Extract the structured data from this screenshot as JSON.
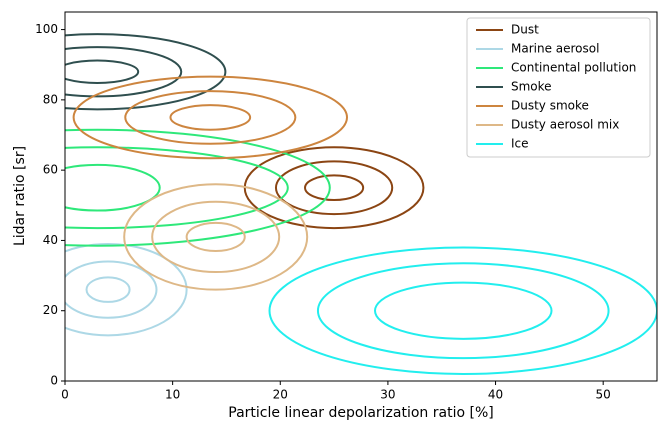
{
  "chart_data": {
    "type": "contour",
    "x_label": "Particle linear depolarization ratio [%]",
    "y_label": "Lidar ratio [sr]",
    "xlim": [
      0,
      55
    ],
    "ylim": [
      0,
      105
    ],
    "xticks": [
      0,
      10,
      20,
      30,
      40,
      50
    ],
    "yticks": [
      0,
      20,
      40,
      60,
      80,
      100
    ],
    "legend": "upper right",
    "series": [
      {
        "name": "Dust",
        "color": "#8b4513",
        "center": [
          25,
          55
        ],
        "rx": [
          8.3,
          5.4,
          2.7
        ],
        "ry": [
          11.5,
          7.5,
          3.5
        ]
      },
      {
        "name": "Marine aerosol",
        "color": "#add8e6",
        "center": [
          4,
          26
        ],
        "rx": [
          7.3,
          4.5,
          2
        ],
        "ry": [
          13,
          8,
          3.5
        ]
      },
      {
        "name": "Continental pollution",
        "color": "#2ee87a",
        "center": [
          3,
          55
        ],
        "rx": [
          21.6,
          17.7,
          5.8
        ],
        "ry": [
          16.5,
          11.5,
          6.5
        ]
      },
      {
        "name": "Smoke",
        "color": "#2f4f4f",
        "center": [
          3,
          88
        ],
        "rx": [
          11.9,
          7.8,
          3.8
        ],
        "ry": [
          10.7,
          7,
          3.2
        ]
      },
      {
        "name": "Dusty smoke",
        "color": "#cd853f",
        "center": [
          13.5,
          75
        ],
        "rx": [
          12.7,
          7.9,
          3.7
        ],
        "ry": [
          11.6,
          7.5,
          3.5
        ]
      },
      {
        "name": "Dusty aerosol mix",
        "color": "#deb887",
        "center": [
          14,
          41
        ],
        "rx": [
          8.5,
          5.9,
          2.7
        ],
        "ry": [
          15,
          10,
          4
        ]
      },
      {
        "name": "Ice",
        "color": "#22eeee",
        "center": [
          37,
          20
        ],
        "rx": [
          18,
          13.5,
          8.2
        ],
        "ry": [
          18,
          13.5,
          8
        ]
      }
    ]
  }
}
